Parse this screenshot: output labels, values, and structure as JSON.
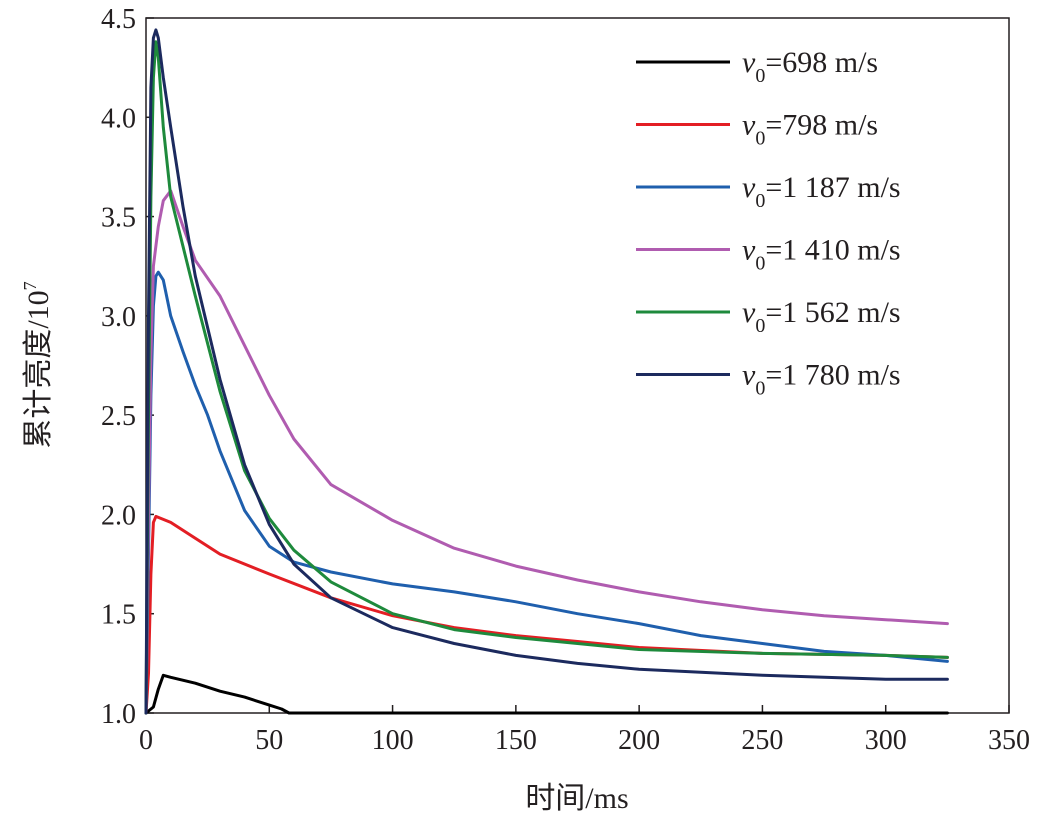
{
  "chart_data": {
    "type": "line",
    "title": "",
    "xlabel": "时间/ms",
    "ylabel": "累计亮度/10",
    "ylabel_sup": "7",
    "xlim": [
      0,
      350
    ],
    "ylim": [
      1.0,
      4.5
    ],
    "xticks": [
      0,
      50,
      100,
      150,
      200,
      250,
      300,
      350
    ],
    "xtick_labels": [
      "0",
      "50",
      "100",
      "150",
      "200",
      "250",
      "300",
      "350"
    ],
    "yticks": [
      1.0,
      1.5,
      2.0,
      2.5,
      3.0,
      3.5,
      4.0,
      4.5
    ],
    "ytick_labels": [
      "1.0",
      "1.5",
      "2.0",
      "2.5",
      "3.0",
      "3.5",
      "4.0",
      "4.5"
    ],
    "grid": false,
    "legend_position": "top-right",
    "series": [
      {
        "name": "v0=698 m/s",
        "legend_var": "v",
        "legend_sub": "0",
        "legend_rest": "=698 m/s",
        "color": "#000000",
        "x": [
          0,
          3,
          5,
          7,
          10,
          20,
          30,
          40,
          50,
          55,
          58,
          60,
          100,
          150,
          200,
          250,
          300,
          325
        ],
        "y": [
          1.0,
          1.03,
          1.12,
          1.19,
          1.18,
          1.15,
          1.11,
          1.08,
          1.04,
          1.02,
          1.0,
          1.0,
          1.0,
          1.0,
          1.0,
          1.0,
          1.0,
          1.0
        ]
      },
      {
        "name": "v0=798 m/s",
        "legend_var": "v",
        "legend_sub": "0",
        "legend_rest": "=798 m/s",
        "color": "#e31e24",
        "x": [
          0,
          1,
          2,
          3,
          4,
          6,
          10,
          20,
          30,
          50,
          75,
          100,
          125,
          150,
          175,
          200,
          250,
          300,
          325
        ],
        "y": [
          1.0,
          1.2,
          1.7,
          1.96,
          1.99,
          1.98,
          1.96,
          1.88,
          1.8,
          1.7,
          1.58,
          1.49,
          1.43,
          1.39,
          1.36,
          1.33,
          1.3,
          1.29,
          1.28
        ]
      },
      {
        "name": "v0=1 187 m/s",
        "legend_var": "v",
        "legend_sub": "0",
        "legend_rest": "=1 187 m/s",
        "color": "#1f5fad",
        "x": [
          0,
          1,
          2,
          3,
          4,
          5,
          7,
          10,
          15,
          20,
          25,
          30,
          40,
          50,
          60,
          75,
          100,
          125,
          150,
          175,
          200,
          225,
          250,
          275,
          300,
          325
        ],
        "y": [
          1.0,
          1.8,
          2.6,
          3.05,
          3.2,
          3.22,
          3.18,
          3.0,
          2.82,
          2.65,
          2.5,
          2.32,
          2.02,
          1.84,
          1.76,
          1.71,
          1.65,
          1.61,
          1.56,
          1.5,
          1.45,
          1.39,
          1.35,
          1.31,
          1.29,
          1.26
        ]
      },
      {
        "name": "v0=1 410 m/s",
        "legend_var": "v",
        "legend_sub": "0",
        "legend_rest": "=1 410 m/s",
        "color": "#b05cb0",
        "x": [
          0,
          1,
          2,
          3,
          5,
          7,
          10,
          15,
          20,
          30,
          40,
          50,
          60,
          75,
          100,
          125,
          150,
          175,
          200,
          225,
          250,
          275,
          300,
          325
        ],
        "y": [
          1.0,
          2.0,
          2.8,
          3.25,
          3.45,
          3.58,
          3.63,
          3.45,
          3.28,
          3.1,
          2.85,
          2.6,
          2.38,
          2.15,
          1.97,
          1.83,
          1.74,
          1.67,
          1.61,
          1.56,
          1.52,
          1.49,
          1.47,
          1.45
        ]
      },
      {
        "name": "v0=1 562 m/s",
        "legend_var": "v",
        "legend_sub": "0",
        "legend_rest": "=1 562 m/s",
        "color": "#1e8a3c",
        "x": [
          0,
          1,
          2,
          3,
          4,
          5,
          7,
          10,
          15,
          20,
          30,
          40,
          50,
          60,
          75,
          100,
          125,
          150,
          175,
          200,
          250,
          300,
          325
        ],
        "y": [
          1.0,
          2.5,
          3.6,
          4.2,
          4.38,
          4.3,
          3.95,
          3.6,
          3.35,
          3.1,
          2.62,
          2.22,
          1.98,
          1.82,
          1.66,
          1.5,
          1.42,
          1.38,
          1.35,
          1.32,
          1.3,
          1.29,
          1.28
        ]
      },
      {
        "name": "v0=1 780 m/s",
        "legend_var": "v",
        "legend_sub": "0",
        "legend_rest": "=1 780 m/s",
        "color": "#1c2a5e",
        "x": [
          0,
          1,
          2,
          3,
          4,
          5,
          7,
          10,
          15,
          20,
          30,
          40,
          50,
          60,
          75,
          100,
          125,
          150,
          175,
          200,
          250,
          300,
          325
        ],
        "y": [
          1.0,
          3.0,
          4.15,
          4.4,
          4.44,
          4.4,
          4.2,
          3.95,
          3.55,
          3.2,
          2.68,
          2.25,
          1.95,
          1.75,
          1.58,
          1.43,
          1.35,
          1.29,
          1.25,
          1.22,
          1.19,
          1.17,
          1.17
        ]
      }
    ]
  }
}
